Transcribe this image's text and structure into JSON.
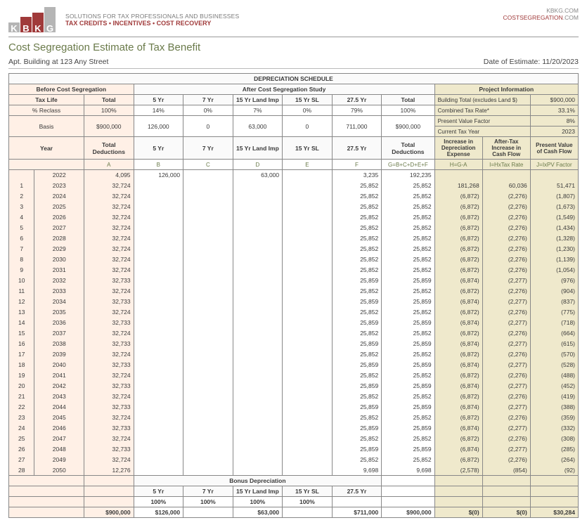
{
  "header": {
    "tagline_line1": "SOLUTIONS FOR TAX PROFESSIONALS AND BUSINESSES",
    "tagline_line2": "TAX CREDITS • INCENTIVES • COST RECOVERY",
    "right_line1": "KBKG.COM",
    "right_line2a": "COSTSEGREGATION",
    "right_line2b": ".COM",
    "logo_letters": [
      "K",
      "B",
      "K",
      "G"
    ]
  },
  "title": "Cost Segregation Estimate of Tax Benefit",
  "subhead_left": "Apt. Building at 123 Any Street",
  "subhead_right": "Date of Estimate: 11/20/2023",
  "colors": {
    "peach": "#fff0e6",
    "tan": "#efe9cc",
    "green": "#6a7a4a",
    "red": "#a03a3a",
    "grey": "#b5b5b5"
  },
  "section_headers": {
    "depreciation_schedule": "DEPRECIATION SCHEDULE",
    "before": "Before Cost Segregation",
    "after": "After Cost Segregation Study",
    "project_info": "Project Information",
    "tax_life": "Tax Life",
    "total": "Total",
    "five_yr": "5 Yr",
    "seven_yr": "7 Yr",
    "land_imp": "15 Yr Land Imp",
    "fifteen_sl": "15 Yr SL",
    "twentyseven": "27.5 Yr",
    "building_total": "Building Total (excludes Land $)",
    "combined_rate": "Combined Tax Rate*",
    "pv_factor": "Present Value Factor",
    "current_year": "Current Tax Year",
    "pct_reclass": "% Reclass",
    "basis": "Basis",
    "year": "Year",
    "total_deductions": "Total Deductions",
    "increase_dep": "Increase in Depreciation Expense",
    "after_tax_cf": "After-Tax Increase in Cash Flow",
    "pv_cf": "Present Value of Cash Flow",
    "bonus_dep": "Bonus Depreciation"
  },
  "project_info": {
    "building_total": "$900,000",
    "combined_rate": "33.1%",
    "pv_factor": "8%",
    "current_year": "2023"
  },
  "reclass": {
    "pct": [
      "100%",
      "14%",
      "0%",
      "7%",
      "0%",
      "79%",
      "100%"
    ],
    "basis": [
      "$900,000",
      "126,000",
      "0",
      "63,000",
      "0",
      "711,000",
      "$900,000"
    ]
  },
  "formulas": {
    "A": "A",
    "B": "B",
    "C": "C",
    "D": "D",
    "E": "E",
    "F": "F",
    "G": "G=B+C+D+E+F",
    "H": "H=G-A",
    "I": "I=HxTax Rate",
    "J": "J=IxPV Factor"
  },
  "rows": [
    {
      "n": "",
      "yr": "2022",
      "A": "4,095",
      "B": "126,000",
      "C": "",
      "D": "63,000",
      "E": "",
      "F": "3,235",
      "G": "192,235",
      "H": "",
      "I": "",
      "J": ""
    },
    {
      "n": "1",
      "yr": "2023",
      "A": "32,724",
      "B": "",
      "C": "",
      "D": "",
      "E": "",
      "F": "25,852",
      "G": "25,852",
      "H": "181,268",
      "I": "60,036",
      "J": "51,471"
    },
    {
      "n": "2",
      "yr": "2024",
      "A": "32,724",
      "B": "",
      "C": "",
      "D": "",
      "E": "",
      "F": "25,852",
      "G": "25,852",
      "H": "(6,872)",
      "I": "(2,276)",
      "J": "(1,807)"
    },
    {
      "n": "3",
      "yr": "2025",
      "A": "32,724",
      "B": "",
      "C": "",
      "D": "",
      "E": "",
      "F": "25,852",
      "G": "25,852",
      "H": "(6,872)",
      "I": "(2,276)",
      "J": "(1,673)"
    },
    {
      "n": "4",
      "yr": "2026",
      "A": "32,724",
      "B": "",
      "C": "",
      "D": "",
      "E": "",
      "F": "25,852",
      "G": "25,852",
      "H": "(6,872)",
      "I": "(2,276)",
      "J": "(1,549)"
    },
    {
      "n": "5",
      "yr": "2027",
      "A": "32,724",
      "B": "",
      "C": "",
      "D": "",
      "E": "",
      "F": "25,852",
      "G": "25,852",
      "H": "(6,872)",
      "I": "(2,276)",
      "J": "(1,434)"
    },
    {
      "n": "6",
      "yr": "2028",
      "A": "32,724",
      "B": "",
      "C": "",
      "D": "",
      "E": "",
      "F": "25,852",
      "G": "25,852",
      "H": "(6,872)",
      "I": "(2,276)",
      "J": "(1,328)"
    },
    {
      "n": "7",
      "yr": "2029",
      "A": "32,724",
      "B": "",
      "C": "",
      "D": "",
      "E": "",
      "F": "25,852",
      "G": "25,852",
      "H": "(6,872)",
      "I": "(2,276)",
      "J": "(1,230)"
    },
    {
      "n": "8",
      "yr": "2030",
      "A": "32,724",
      "B": "",
      "C": "",
      "D": "",
      "E": "",
      "F": "25,852",
      "G": "25,852",
      "H": "(6,872)",
      "I": "(2,276)",
      "J": "(1,139)"
    },
    {
      "n": "9",
      "yr": "2031",
      "A": "32,724",
      "B": "",
      "C": "",
      "D": "",
      "E": "",
      "F": "25,852",
      "G": "25,852",
      "H": "(6,872)",
      "I": "(2,276)",
      "J": "(1,054)"
    },
    {
      "n": "10",
      "yr": "2032",
      "A": "32,733",
      "B": "",
      "C": "",
      "D": "",
      "E": "",
      "F": "25,859",
      "G": "25,859",
      "H": "(6,874)",
      "I": "(2,277)",
      "J": "(976)"
    },
    {
      "n": "11",
      "yr": "2033",
      "A": "32,724",
      "B": "",
      "C": "",
      "D": "",
      "E": "",
      "F": "25,852",
      "G": "25,852",
      "H": "(6,872)",
      "I": "(2,276)",
      "J": "(904)"
    },
    {
      "n": "12",
      "yr": "2034",
      "A": "32,733",
      "B": "",
      "C": "",
      "D": "",
      "E": "",
      "F": "25,859",
      "G": "25,859",
      "H": "(6,874)",
      "I": "(2,277)",
      "J": "(837)"
    },
    {
      "n": "13",
      "yr": "2035",
      "A": "32,724",
      "B": "",
      "C": "",
      "D": "",
      "E": "",
      "F": "25,852",
      "G": "25,852",
      "H": "(6,872)",
      "I": "(2,276)",
      "J": "(775)"
    },
    {
      "n": "14",
      "yr": "2036",
      "A": "32,733",
      "B": "",
      "C": "",
      "D": "",
      "E": "",
      "F": "25,859",
      "G": "25,859",
      "H": "(6,874)",
      "I": "(2,277)",
      "J": "(718)"
    },
    {
      "n": "15",
      "yr": "2037",
      "A": "32,724",
      "B": "",
      "C": "",
      "D": "",
      "E": "",
      "F": "25,852",
      "G": "25,852",
      "H": "(6,872)",
      "I": "(2,276)",
      "J": "(664)"
    },
    {
      "n": "16",
      "yr": "2038",
      "A": "32,733",
      "B": "",
      "C": "",
      "D": "",
      "E": "",
      "F": "25,859",
      "G": "25,859",
      "H": "(6,874)",
      "I": "(2,277)",
      "J": "(615)"
    },
    {
      "n": "17",
      "yr": "2039",
      "A": "32,724",
      "B": "",
      "C": "",
      "D": "",
      "E": "",
      "F": "25,852",
      "G": "25,852",
      "H": "(6,872)",
      "I": "(2,276)",
      "J": "(570)"
    },
    {
      "n": "18",
      "yr": "2040",
      "A": "32,733",
      "B": "",
      "C": "",
      "D": "",
      "E": "",
      "F": "25,859",
      "G": "25,859",
      "H": "(6,874)",
      "I": "(2,277)",
      "J": "(528)"
    },
    {
      "n": "19",
      "yr": "2041",
      "A": "32,724",
      "B": "",
      "C": "",
      "D": "",
      "E": "",
      "F": "25,852",
      "G": "25,852",
      "H": "(6,872)",
      "I": "(2,276)",
      "J": "(488)"
    },
    {
      "n": "20",
      "yr": "2042",
      "A": "32,733",
      "B": "",
      "C": "",
      "D": "",
      "E": "",
      "F": "25,859",
      "G": "25,859",
      "H": "(6,874)",
      "I": "(2,277)",
      "J": "(452)"
    },
    {
      "n": "21",
      "yr": "2043",
      "A": "32,724",
      "B": "",
      "C": "",
      "D": "",
      "E": "",
      "F": "25,852",
      "G": "25,852",
      "H": "(6,872)",
      "I": "(2,276)",
      "J": "(419)"
    },
    {
      "n": "22",
      "yr": "2044",
      "A": "32,733",
      "B": "",
      "C": "",
      "D": "",
      "E": "",
      "F": "25,859",
      "G": "25,859",
      "H": "(6,874)",
      "I": "(2,277)",
      "J": "(388)"
    },
    {
      "n": "23",
      "yr": "2045",
      "A": "32,724",
      "B": "",
      "C": "",
      "D": "",
      "E": "",
      "F": "25,852",
      "G": "25,852",
      "H": "(6,872)",
      "I": "(2,276)",
      "J": "(359)"
    },
    {
      "n": "24",
      "yr": "2046",
      "A": "32,733",
      "B": "",
      "C": "",
      "D": "",
      "E": "",
      "F": "25,859",
      "G": "25,859",
      "H": "(6,874)",
      "I": "(2,277)",
      "J": "(332)"
    },
    {
      "n": "25",
      "yr": "2047",
      "A": "32,724",
      "B": "",
      "C": "",
      "D": "",
      "E": "",
      "F": "25,852",
      "G": "25,852",
      "H": "(6,872)",
      "I": "(2,276)",
      "J": "(308)"
    },
    {
      "n": "26",
      "yr": "2048",
      "A": "32,733",
      "B": "",
      "C": "",
      "D": "",
      "E": "",
      "F": "25,859",
      "G": "25,859",
      "H": "(6,874)",
      "I": "(2,277)",
      "J": "(285)"
    },
    {
      "n": "27",
      "yr": "2049",
      "A": "32,724",
      "B": "",
      "C": "",
      "D": "",
      "E": "",
      "F": "25,852",
      "G": "25,852",
      "H": "(6,872)",
      "I": "(2,276)",
      "J": "(264)"
    },
    {
      "n": "28",
      "yr": "2050",
      "A": "12,276",
      "B": "",
      "C": "",
      "D": "",
      "E": "",
      "F": "9,698",
      "G": "9,698",
      "H": "(2,578)",
      "I": "(854)",
      "J": "(92)"
    }
  ],
  "bonus_pct": [
    "100%",
    "100%",
    "100%",
    "100%",
    ""
  ],
  "totals": {
    "A": "$900,000",
    "B": "$126,000",
    "C": "",
    "D": "$63,000",
    "E": "",
    "F": "$711,000",
    "G": "$900,000",
    "H": "$(0)",
    "I": "$(0)",
    "J": "$30,284"
  }
}
